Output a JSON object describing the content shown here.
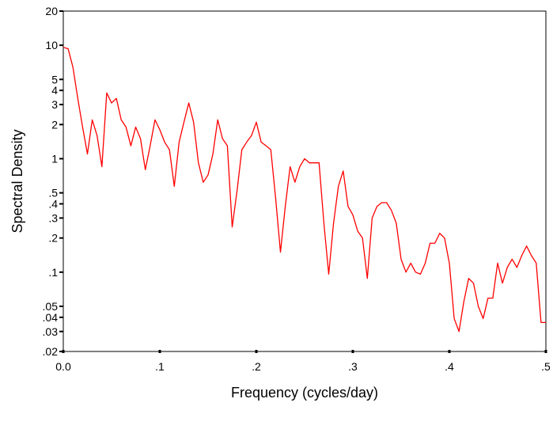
{
  "chart_data": {
    "type": "line",
    "x_label": "Frequency (cycles/day)",
    "y_label": "Spectral Density",
    "log_y": true,
    "grid": false,
    "xlim": [
      0,
      0.5
    ],
    "xticks": [
      {
        "value": 0,
        "label": "0.0"
      },
      {
        "value": 0.1,
        "label": ".1"
      },
      {
        "value": 0.2,
        "label": ".2"
      },
      {
        "value": 0.3,
        "label": ".3"
      },
      {
        "value": 0.4,
        "label": ".4"
      },
      {
        "value": 0.5,
        "label": ".5"
      }
    ],
    "ylim": [
      0.02,
      20
    ],
    "yticks": [
      20,
      10,
      5,
      4,
      3,
      2,
      1,
      {
        "value": 0.5,
        "label": ".5"
      },
      {
        "value": 0.4,
        "label": ".4"
      },
      {
        "value": 0.3,
        "label": ".3"
      },
      {
        "value": 0.2,
        "label": ".2"
      },
      {
        "value": 0.1,
        "label": ".1"
      },
      {
        "value": 0.05,
        "label": ".05"
      },
      {
        "value": 0.04,
        "label": ".04"
      },
      {
        "value": 0.03,
        "label": ".03"
      },
      {
        "value": 0.02,
        "label": ".02"
      }
    ],
    "x": [
      0,
      0.005,
      0.01,
      0.015,
      0.02,
      0.025,
      0.03,
      0.035,
      0.04,
      0.045,
      0.05,
      0.055,
      0.06,
      0.065,
      0.07,
      0.075,
      0.08,
      0.085,
      0.09,
      0.095,
      0.1,
      0.105,
      0.11,
      0.115,
      0.12,
      0.125,
      0.13,
      0.135,
      0.14,
      0.145,
      0.15,
      0.155,
      0.16,
      0.165,
      0.17,
      0.175,
      0.18,
      0.185,
      0.19,
      0.195,
      0.2,
      0.205,
      0.21,
      0.215,
      0.22,
      0.225,
      0.23,
      0.235,
      0.24,
      0.245,
      0.25,
      0.255,
      0.26,
      0.265,
      0.27,
      0.275,
      0.28,
      0.285,
      0.29,
      0.295,
      0.3,
      0.305,
      0.31,
      0.315,
      0.32,
      0.325,
      0.33,
      0.335,
      0.34,
      0.345,
      0.35,
      0.355,
      0.36,
      0.365,
      0.37,
      0.375,
      0.38,
      0.385,
      0.39,
      0.395,
      0.4,
      0.405,
      0.41,
      0.415,
      0.42,
      0.425,
      0.43,
      0.435,
      0.44,
      0.445,
      0.45,
      0.455,
      0.46,
      0.465,
      0.47,
      0.475,
      0.48,
      0.485,
      0.49,
      0.495,
      0.5
    ],
    "series": [
      {
        "color": "#ff0000",
        "values": [
          9.6,
          9.3,
          6.4,
          3.4,
          1.9,
          1.1,
          2.2,
          1.6,
          0.85,
          3.8,
          3.1,
          3.4,
          2.2,
          1.9,
          1.3,
          1.9,
          1.5,
          0.8,
          1.3,
          2.2,
          1.8,
          1.4,
          1.2,
          0.57,
          1.4,
          2.1,
          3.1,
          2.1,
          0.92,
          0.62,
          0.72,
          1.1,
          2.2,
          1.5,
          1.3,
          0.25,
          0.52,
          1.2,
          1.4,
          1.6,
          2.1,
          1.4,
          1.3,
          1.2,
          0.45,
          0.15,
          0.38,
          0.85,
          0.62,
          0.85,
          1.0,
          0.92,
          0.92,
          0.92,
          0.27,
          0.096,
          0.27,
          0.57,
          0.78,
          0.38,
          0.32,
          0.23,
          0.2,
          0.088,
          0.3,
          0.38,
          0.41,
          0.41,
          0.35,
          0.27,
          0.13,
          0.1,
          0.12,
          0.1,
          0.096,
          0.12,
          0.18,
          0.18,
          0.22,
          0.2,
          0.12,
          0.039,
          0.03,
          0.055,
          0.088,
          0.08,
          0.05,
          0.039,
          0.059,
          0.059,
          0.12,
          0.08,
          0.11,
          0.13,
          0.11,
          0.14,
          0.17,
          0.14,
          0.12,
          0.036,
          0.036
        ]
      }
    ]
  }
}
